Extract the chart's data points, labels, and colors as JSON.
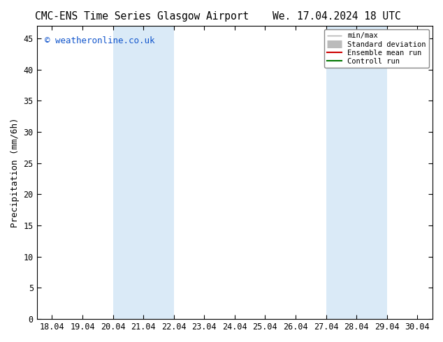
{
  "title_left": "CMC-ENS Time Series Glasgow Airport",
  "title_right": "We. 17.04.2024 18 UTC",
  "ylabel": "Precipitation (mm/6h)",
  "ylim": [
    0,
    47
  ],
  "yticks": [
    0,
    5,
    10,
    15,
    20,
    25,
    30,
    35,
    40,
    45
  ],
  "xtick_labels": [
    "18.04",
    "19.04",
    "20.04",
    "21.04",
    "22.04",
    "23.04",
    "24.04",
    "25.04",
    "26.04",
    "27.04",
    "28.04",
    "29.04",
    "30.04"
  ],
  "xtick_positions": [
    0,
    1,
    2,
    3,
    4,
    5,
    6,
    7,
    8,
    9,
    10,
    11,
    12
  ],
  "xmin": -0.5,
  "xmax": 12.5,
  "shade_bands": [
    {
      "xmin": 2.0,
      "xmax": 4.0
    },
    {
      "xmin": 9.0,
      "xmax": 11.0
    }
  ],
  "shade_color": "#daeaf7",
  "copyright_text": "© weatheronline.co.uk",
  "copyright_color": "#1155cc",
  "legend_items": [
    {
      "label": "min/max",
      "color": "#aaaaaa",
      "lw": 1.0,
      "style": "minmax"
    },
    {
      "label": "Standard deviation",
      "color": "#bbbbbb",
      "lw": 8,
      "style": "band"
    },
    {
      "label": "Ensemble mean run",
      "color": "#cc0000",
      "lw": 1.5,
      "style": "line"
    },
    {
      "label": "Controll run",
      "color": "#007700",
      "lw": 1.5,
      "style": "line"
    }
  ],
  "background_color": "#ffffff",
  "plot_bg_color": "#ffffff",
  "title_fontsize": 10.5,
  "tick_fontsize": 8.5,
  "ylabel_fontsize": 9,
  "copyright_fontsize": 9
}
